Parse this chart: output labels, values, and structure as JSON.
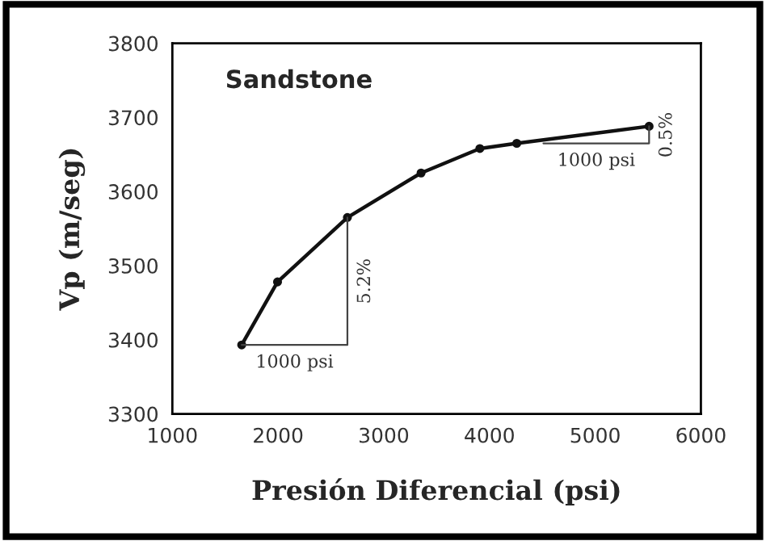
{
  "chart_data": {
    "type": "line",
    "title": "Sandstone",
    "xlabel": "Presión Diferencial (psi)",
    "ylabel": "Vp (m/seg)",
    "x": [
      1656,
      1995,
      2656,
      3353,
      3909,
      4258,
      5510
    ],
    "series": [
      {
        "color": "#111111",
        "values": [
          3393,
          3478,
          3565,
          3625,
          3658,
          3665,
          3688
        ]
      }
    ],
    "xlim": [
      1000,
      6000
    ],
    "xticks": [
      1000,
      2000,
      3000,
      4000,
      5000,
      6000
    ],
    "ylim": [
      3300,
      3800
    ],
    "yticks": [
      3300,
      3400,
      3500,
      3600,
      3700,
      3800
    ],
    "marker": "circle",
    "line_style": "solid",
    "grid": false,
    "legend": false,
    "annotations": [
      {
        "text": "1000 psi",
        "x": 1656,
        "y": 3393
      },
      "5.2%",
      {
        "text": "1000 psi",
        "x": 5510,
        "y": 3688
      },
      "0.5%"
    ]
  }
}
